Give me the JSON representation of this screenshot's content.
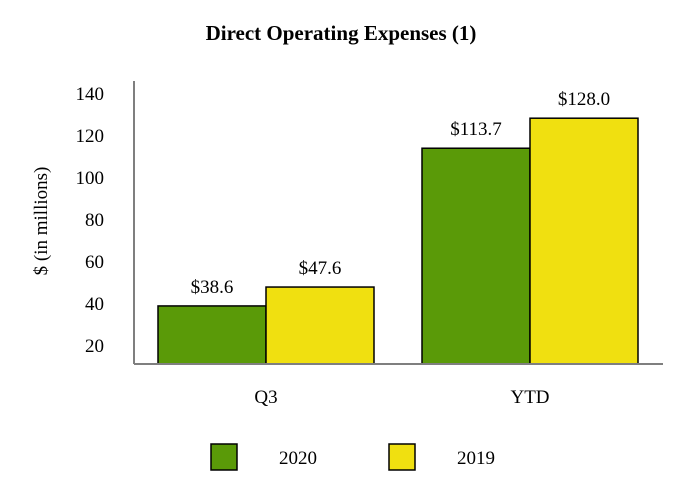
{
  "chart_data": {
    "type": "bar",
    "title": "Direct Operating Expenses (1)",
    "xlabel": "",
    "ylabel": "$ (in millions)",
    "categories": [
      "Q3",
      "YTD"
    ],
    "series": [
      {
        "name": "2020",
        "values": [
          38.6,
          113.7
        ],
        "labels": [
          "$38.6",
          "$113.7"
        ],
        "color": "#5a9a08"
      },
      {
        "name": "2019",
        "values": [
          47.6,
          128.0
        ],
        "labels": [
          "$47.6",
          "$128.0"
        ],
        "color": "#f0e010"
      }
    ],
    "ylim": [
      20,
      140
    ],
    "yticks": [
      20,
      40,
      60,
      80,
      100,
      120,
      140
    ],
    "grid": false,
    "legend": "bottom"
  }
}
